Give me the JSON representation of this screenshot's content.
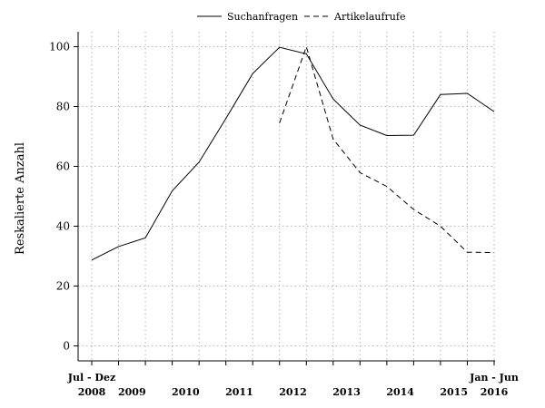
{
  "chart_data": {
    "type": "line",
    "title": "",
    "xlabel": "",
    "ylabel": "Reskalierte Anzahl",
    "ylim": [
      -5,
      105
    ],
    "yticks": [
      0,
      20,
      40,
      60,
      80,
      100
    ],
    "grid": true,
    "legend": "top-center",
    "x": [
      "H2 2008",
      "H1 2009",
      "H2 2009",
      "H1 2010",
      "H2 2010",
      "H1 2011",
      "H2 2011",
      "H1 2012",
      "H2 2012",
      "H1 2013",
      "H2 2013",
      "H1 2014",
      "H2 2014",
      "H1 2015",
      "H2 2015",
      "H1 2016"
    ],
    "x_tick_labels": [
      {
        "index": 0,
        "top": "Jul - Dez",
        "bottom": "2008"
      },
      {
        "index": 1.5,
        "top": "",
        "bottom": "2009"
      },
      {
        "index": 3.5,
        "top": "",
        "bottom": "2010"
      },
      {
        "index": 5.5,
        "top": "",
        "bottom": "2011"
      },
      {
        "index": 7.5,
        "top": "",
        "bottom": "2012"
      },
      {
        "index": 9.5,
        "top": "",
        "bottom": "2013"
      },
      {
        "index": 11.5,
        "top": "",
        "bottom": "2014"
      },
      {
        "index": 13.5,
        "top": "",
        "bottom": "2015"
      },
      {
        "index": 15,
        "top": "Jan - Jun",
        "bottom": "2016"
      }
    ],
    "series": [
      {
        "name": "Suchanfragen",
        "style": "solid",
        "color": "#000000",
        "values": [
          28.7,
          33.2,
          36.1,
          51.8,
          61.4,
          76,
          91,
          99.8,
          97.6,
          82.5,
          73.8,
          70.3,
          70.4,
          84,
          84.4,
          78.3
        ]
      },
      {
        "name": "Artikelaufrufe",
        "style": "dashed",
        "color": "#000000",
        "values": [
          null,
          null,
          null,
          null,
          null,
          null,
          null,
          74.5,
          100,
          69.1,
          57.9,
          53.3,
          45.6,
          40,
          31.3,
          31.2
        ]
      }
    ]
  }
}
